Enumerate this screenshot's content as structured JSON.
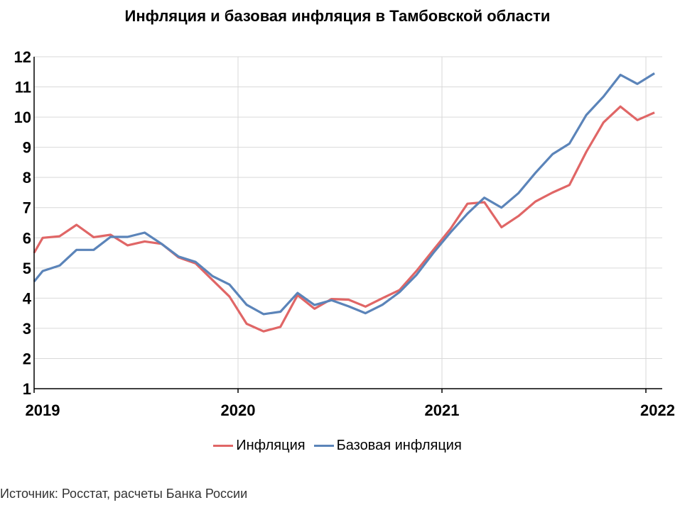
{
  "colors": {
    "inflation": "#e06666",
    "core_inflation": "#5b84b9",
    "grid": "#d9d9d9",
    "axis": "#000000"
  },
  "chart_data": {
    "type": "line",
    "title": "Инфляция и базовая инфляция в Тамбовской области",
    "xlabel": "",
    "ylabel": "",
    "ylim": [
      1,
      12
    ],
    "y_ticks": [
      "1",
      "2",
      "3",
      "4",
      "5",
      "6",
      "7",
      "8",
      "9",
      "10",
      "11",
      "12"
    ],
    "x_ticks": [
      "2019",
      "2020",
      "2021",
      "2022"
    ],
    "x_tick_values": [
      2019,
      2020,
      2021,
      2022
    ],
    "xlim": [
      2019,
      2022.08
    ],
    "grid": true,
    "legend_position": "bottom",
    "x": [
      2019.0,
      2019.042,
      2019.125,
      2019.208,
      2019.292,
      2019.375,
      2019.458,
      2019.542,
      2019.625,
      2019.708,
      2019.792,
      2019.875,
      2019.958,
      2020.042,
      2020.125,
      2020.208,
      2020.292,
      2020.375,
      2020.458,
      2020.542,
      2020.625,
      2020.708,
      2020.792,
      2020.875,
      2020.958,
      2021.042,
      2021.125,
      2021.208,
      2021.292,
      2021.375,
      2021.458,
      2021.542,
      2021.625,
      2021.708,
      2021.792,
      2021.875,
      2021.958,
      2022.042
    ],
    "series": [
      {
        "name": "Инфляция",
        "values": [
          5.5,
          6.0,
          6.05,
          6.43,
          6.02,
          6.1,
          5.75,
          5.88,
          5.8,
          5.35,
          5.15,
          4.6,
          4.05,
          3.15,
          2.9,
          3.05,
          4.1,
          3.65,
          3.97,
          3.95,
          3.72,
          4.0,
          4.27,
          4.9,
          5.6,
          6.3,
          7.13,
          7.18,
          6.35,
          6.72,
          7.2,
          7.5,
          7.75,
          8.85,
          9.82,
          10.35,
          9.9,
          10.15
        ]
      },
      {
        "name": "Базовая инфляция",
        "values": [
          4.55,
          4.9,
          5.08,
          5.6,
          5.6,
          6.03,
          6.03,
          6.17,
          5.8,
          5.38,
          5.2,
          4.73,
          4.45,
          3.78,
          3.47,
          3.55,
          4.17,
          3.77,
          3.93,
          3.73,
          3.5,
          3.78,
          4.2,
          4.77,
          5.5,
          6.18,
          6.8,
          7.33,
          7.0,
          7.48,
          8.15,
          8.77,
          9.12,
          10.07,
          10.68,
          11.4,
          11.1,
          11.45
        ]
      }
    ],
    "source": "Источник: Росстат, расчеты Банка России"
  }
}
